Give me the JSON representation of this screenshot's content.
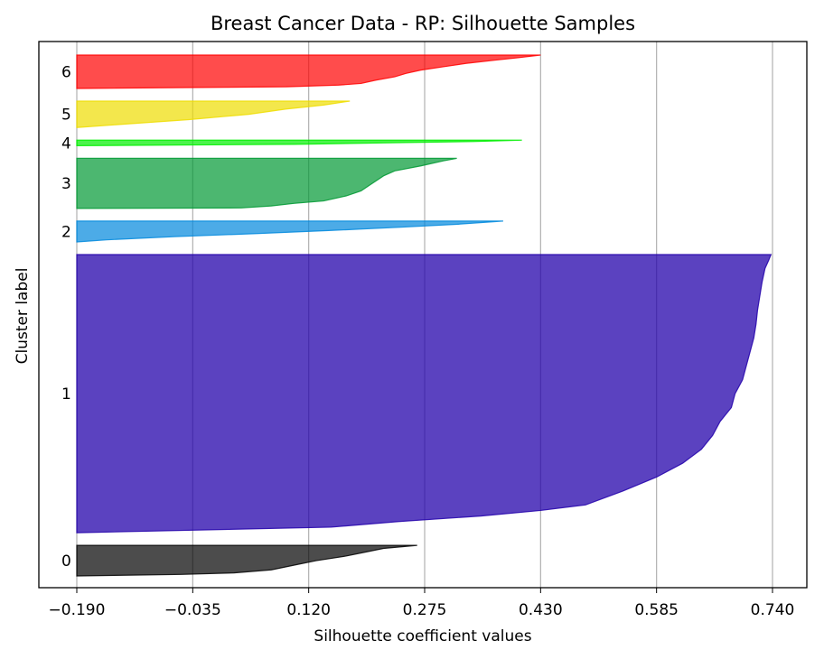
{
  "chart_data": {
    "type": "area",
    "title": "Breast Cancer Data - RP: Silhouette Samples",
    "xlabel": "Silhouette coefficient values",
    "ylabel": "Cluster label",
    "xlim": [
      -0.19,
      0.74
    ],
    "xticks": [
      "−0.190",
      "−0.035",
      "0.120",
      "0.275",
      "0.430",
      "0.585",
      "0.740"
    ],
    "xtick_values": [
      -0.19,
      -0.035,
      0.12,
      0.275,
      0.43,
      0.585,
      0.74
    ],
    "grid": "vertical",
    "series": [
      {
        "name": "0",
        "label": "0",
        "color": "#000000",
        "opacity": 0.7,
        "size": 22,
        "profile": [
          [
            0,
            -0.19
          ],
          [
            0.05,
            -0.05
          ],
          [
            0.1,
            0.02
          ],
          [
            0.2,
            0.07
          ],
          [
            0.35,
            0.1
          ],
          [
            0.5,
            0.13
          ],
          [
            0.65,
            0.17
          ],
          [
            0.8,
            0.2
          ],
          [
            0.9,
            0.22
          ],
          [
            1,
            0.265
          ]
        ]
      },
      {
        "name": "1",
        "label": "1",
        "color": "#2200AA",
        "opacity": 0.74,
        "size": 200,
        "profile": [
          [
            0,
            -0.19
          ],
          [
            0.02,
            0.15
          ],
          [
            0.04,
            0.24
          ],
          [
            0.06,
            0.35
          ],
          [
            0.08,
            0.43
          ],
          [
            0.1,
            0.49
          ],
          [
            0.15,
            0.54
          ],
          [
            0.2,
            0.585
          ],
          [
            0.25,
            0.62
          ],
          [
            0.3,
            0.645
          ],
          [
            0.35,
            0.66
          ],
          [
            0.4,
            0.67
          ],
          [
            0.45,
            0.685
          ],
          [
            0.5,
            0.69
          ],
          [
            0.55,
            0.7
          ],
          [
            0.6,
            0.705
          ],
          [
            0.65,
            0.71
          ],
          [
            0.7,
            0.715
          ],
          [
            0.75,
            0.718
          ],
          [
            0.8,
            0.72
          ],
          [
            0.85,
            0.723
          ],
          [
            0.9,
            0.726
          ],
          [
            0.95,
            0.73
          ],
          [
            0.98,
            0.735
          ],
          [
            1,
            0.738
          ]
        ]
      },
      {
        "name": "2",
        "label": "2",
        "color": "#0088DD",
        "opacity": 0.7,
        "size": 15,
        "profile": [
          [
            0,
            -0.19
          ],
          [
            0.1,
            -0.15
          ],
          [
            0.25,
            -0.06
          ],
          [
            0.4,
            0.05
          ],
          [
            0.55,
            0.15
          ],
          [
            0.7,
            0.24
          ],
          [
            0.85,
            0.32
          ],
          [
            1,
            0.38
          ]
        ]
      },
      {
        "name": "3",
        "label": "3",
        "color": "#009933",
        "opacity": 0.7,
        "size": 36,
        "profile": [
          [
            0,
            -0.19
          ],
          [
            0.01,
            0.03
          ],
          [
            0.05,
            0.07
          ],
          [
            0.1,
            0.1
          ],
          [
            0.15,
            0.14
          ],
          [
            0.25,
            0.17
          ],
          [
            0.35,
            0.19
          ],
          [
            0.45,
            0.2
          ],
          [
            0.55,
            0.21
          ],
          [
            0.65,
            0.22
          ],
          [
            0.75,
            0.235
          ],
          [
            0.85,
            0.27
          ],
          [
            0.95,
            0.3
          ],
          [
            1,
            0.318
          ]
        ]
      },
      {
        "name": "4",
        "label": "4",
        "color": "#00EE00",
        "opacity": 0.7,
        "size": 4,
        "profile": [
          [
            0,
            -0.19
          ],
          [
            0.25,
            0.1
          ],
          [
            0.5,
            0.22
          ],
          [
            0.75,
            0.34
          ],
          [
            1,
            0.405
          ]
        ]
      },
      {
        "name": "5",
        "label": "5",
        "color": "#EEDD00",
        "opacity": 0.7,
        "size": 19,
        "profile": [
          [
            0,
            -0.19
          ],
          [
            0.1,
            -0.14
          ],
          [
            0.3,
            -0.04
          ],
          [
            0.5,
            0.04
          ],
          [
            0.7,
            0.09
          ],
          [
            0.85,
            0.14
          ],
          [
            1,
            0.175
          ]
        ]
      },
      {
        "name": "6",
        "label": "6",
        "color": "#FF0000",
        "opacity": 0.7,
        "size": 24,
        "profile": [
          [
            0,
            -0.19
          ],
          [
            0.05,
            0.09
          ],
          [
            0.1,
            0.16
          ],
          [
            0.15,
            0.19
          ],
          [
            0.25,
            0.21
          ],
          [
            0.35,
            0.235
          ],
          [
            0.45,
            0.25
          ],
          [
            0.55,
            0.27
          ],
          [
            0.65,
            0.3
          ],
          [
            0.75,
            0.33
          ],
          [
            0.85,
            0.37
          ],
          [
            0.92,
            0.4
          ],
          [
            1,
            0.43
          ]
        ]
      }
    ]
  }
}
